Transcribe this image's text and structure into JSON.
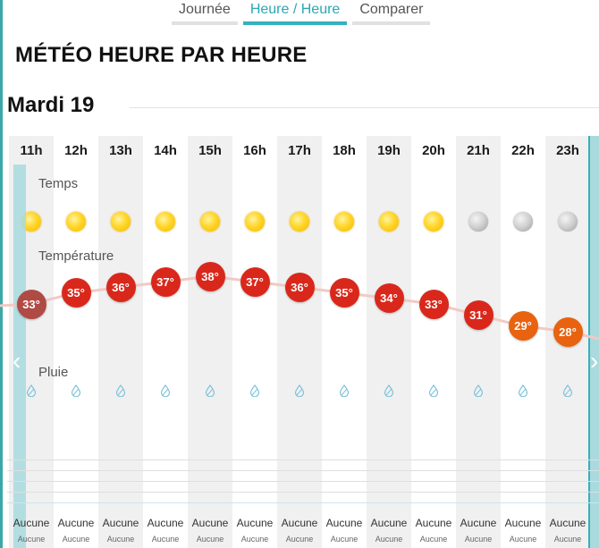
{
  "tabs": [
    {
      "label": "Journée",
      "active": false
    },
    {
      "label": "Heure / Heure",
      "active": true
    },
    {
      "label": "Comparer",
      "active": false
    }
  ],
  "page_title": "MÉTÉO HEURE PAR HEURE",
  "day_title": "Mardi 19",
  "sections": {
    "temps": "Temps",
    "temperature": "Température",
    "pluie": "Pluie"
  },
  "hours": [
    {
      "hour": "11h",
      "icon": "sun-icon",
      "temp": 33,
      "temp_label": "33°",
      "color": "#b04a44",
      "rain": "Aucune",
      "rain_sub": "Aucune"
    },
    {
      "hour": "12h",
      "icon": "sun-icon",
      "temp": 35,
      "temp_label": "35°",
      "color": "#d9281b",
      "rain": "Aucune",
      "rain_sub": "Aucune"
    },
    {
      "hour": "13h",
      "icon": "sun-icon",
      "temp": 36,
      "temp_label": "36°",
      "color": "#d9281b",
      "rain": "Aucune",
      "rain_sub": "Aucune"
    },
    {
      "hour": "14h",
      "icon": "sun-icon",
      "temp": 37,
      "temp_label": "37°",
      "color": "#d9281b",
      "rain": "Aucune",
      "rain_sub": "Aucune"
    },
    {
      "hour": "15h",
      "icon": "sun-icon",
      "temp": 38,
      "temp_label": "38°",
      "color": "#d9281b",
      "rain": "Aucune",
      "rain_sub": "Aucune"
    },
    {
      "hour": "16h",
      "icon": "sun-icon",
      "temp": 37,
      "temp_label": "37°",
      "color": "#d9281b",
      "rain": "Aucune",
      "rain_sub": "Aucune"
    },
    {
      "hour": "17h",
      "icon": "sun-icon",
      "temp": 36,
      "temp_label": "36°",
      "color": "#d9281b",
      "rain": "Aucune",
      "rain_sub": "Aucune"
    },
    {
      "hour": "18h",
      "icon": "sun-icon",
      "temp": 35,
      "temp_label": "35°",
      "color": "#d9281b",
      "rain": "Aucune",
      "rain_sub": "Aucune"
    },
    {
      "hour": "19h",
      "icon": "sun-icon",
      "temp": 34,
      "temp_label": "34°",
      "color": "#d9281b",
      "rain": "Aucune",
      "rain_sub": "Aucune"
    },
    {
      "hour": "20h",
      "icon": "sun-icon",
      "temp": 33,
      "temp_label": "33°",
      "color": "#d9281b",
      "rain": "Aucune",
      "rain_sub": "Aucune"
    },
    {
      "hour": "21h",
      "icon": "moon-icon",
      "temp": 31,
      "temp_label": "31°",
      "color": "#d9281b",
      "rain": "Aucune",
      "rain_sub": "Aucune"
    },
    {
      "hour": "22h",
      "icon": "moon-icon",
      "temp": 29,
      "temp_label": "29°",
      "color": "#e8620f",
      "rain": "Aucune",
      "rain_sub": "Aucune"
    },
    {
      "hour": "23h",
      "icon": "moon-icon",
      "temp": 28,
      "temp_label": "28°",
      "color": "#e8620f",
      "rain": "Aucune",
      "rain_sub": "Aucune"
    }
  ],
  "colors": {
    "accent": "#34b2bd",
    "hot": "#d9281b",
    "warm": "#e8620f",
    "current_hour": "#b04a44"
  },
  "icons": {
    "prev": "chevron-left-icon",
    "next": "chevron-right-icon",
    "rain": "raindrop-icon"
  }
}
